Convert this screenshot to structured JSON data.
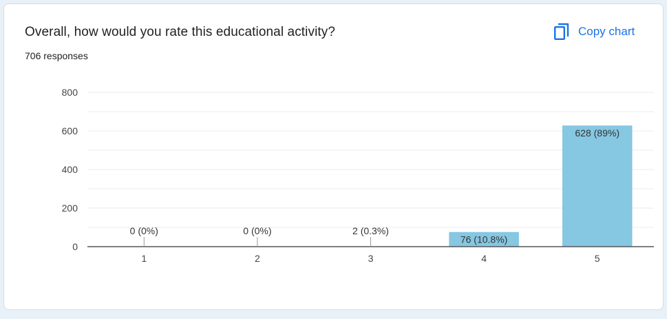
{
  "question": {
    "title": "Overall, how would you rate this educational activity?",
    "responses": "706 responses"
  },
  "toolbar": {
    "copy_label": "Copy chart",
    "copy_icon": "copy-icon"
  },
  "colors": {
    "bar": "#86c7e2",
    "accent": "#1a73e8",
    "axis": "#555555",
    "grid": "#ebebeb"
  },
  "chart_data": {
    "type": "bar",
    "categories": [
      "1",
      "2",
      "3",
      "4",
      "5"
    ],
    "values": [
      0,
      0,
      2,
      76,
      628
    ],
    "data_labels": [
      "0 (0%)",
      "0 (0%)",
      "2 (0.3%)",
      "76 (10.8%)",
      "628 (89%)"
    ],
    "title": "Overall, how would you rate this educational activity?",
    "xlabel": "",
    "ylabel": "",
    "ylim": [
      0,
      800
    ],
    "yticks": [
      0,
      200,
      400,
      600,
      800
    ],
    "grid": true,
    "legend": "none"
  }
}
